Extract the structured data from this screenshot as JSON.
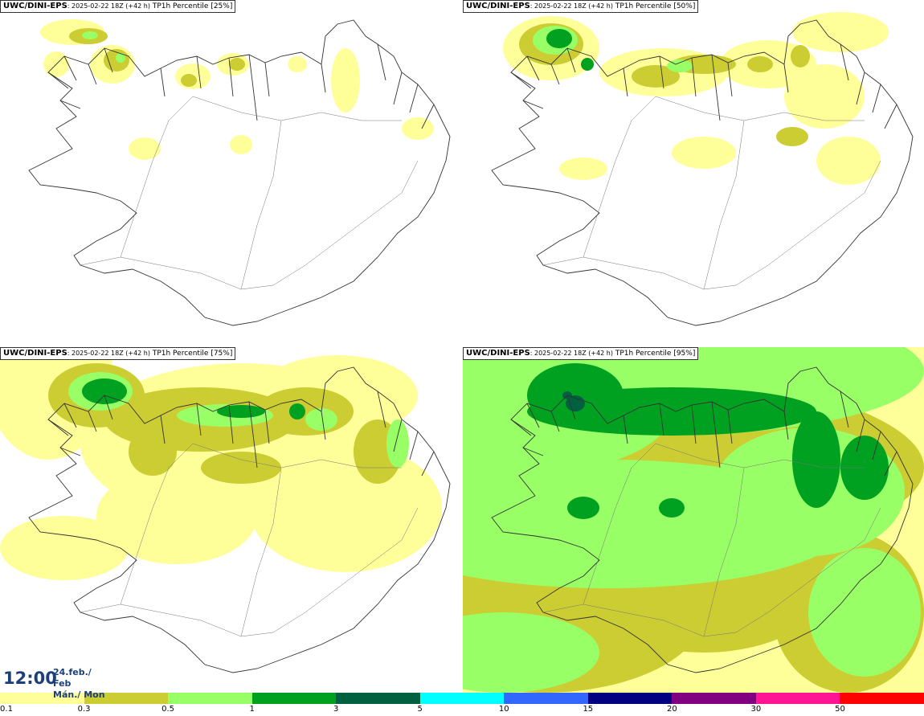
{
  "panels": [
    {
      "source": "UWC/DINI-EPS",
      "run": ": 2025-02-22 18Z (+42 h)",
      "product": " TP1h Percentile [25%]",
      "level": 0
    },
    {
      "source": "UWC/DINI-EPS",
      "run": ": 2025-02-22 18Z (+42 h)",
      "product": " TP1h Percentile [50%]",
      "level": 1
    },
    {
      "source": "UWC/DINI-EPS",
      "run": ": 2025-02-22 18Z (+42 h)",
      "product": " TP1h Percentile [75%]",
      "level": 2
    },
    {
      "source": "UWC/DINI-EPS",
      "run": ": 2025-02-22 18Z (+42 h)",
      "product": " TP1h Percentile [95%]",
      "level": 3
    }
  ],
  "valid_time": {
    "time": "12:00",
    "date": "24.feb./ Feb",
    "weekday": "Mán./ Mon"
  },
  "colorbar": {
    "labels": [
      "0.1",
      "0.3",
      "0.5",
      "1",
      "3",
      "5",
      "10",
      "15",
      "20",
      "30",
      "50"
    ],
    "colors": [
      "#ffff99",
      "#cccc33",
      "#99ff66",
      "#00a020",
      "#006040",
      "#00ffff",
      "#3366ff",
      "#000080",
      "#800080",
      "#ff1493",
      "#ff0000"
    ]
  },
  "map_colors": {
    "light_yellow": "#ffff99",
    "olive": "#cccc33",
    "light_green": "#99ff66",
    "green": "#00a020",
    "dark_green": "#006040",
    "coast": "#333333"
  }
}
